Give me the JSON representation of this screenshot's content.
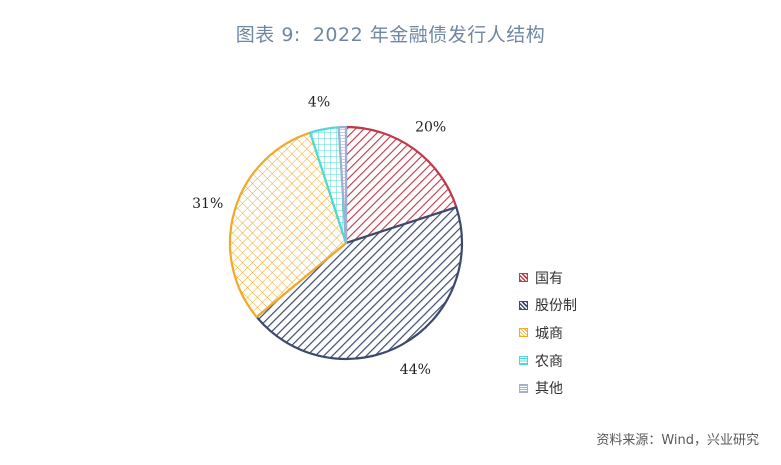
{
  "figure": {
    "label": "图表 9:",
    "title": "2022 年金融债发行人结构"
  },
  "chart_data": {
    "type": "pie",
    "categories": [
      "国有",
      "股份制",
      "城商",
      "农商",
      "其他"
    ],
    "values": [
      20,
      44,
      31,
      4,
      1
    ],
    "value_labels": [
      "20%",
      "44%",
      "31%",
      "4%",
      ""
    ],
    "colors": [
      "#c0394b",
      "#3c4a6b",
      "#f0a928",
      "#4fd8d4",
      "#9fb0d3"
    ],
    "legend_position": "right",
    "title": "2022 年金融债发行人结构"
  },
  "source": "资料来源：Wind，兴业研究"
}
